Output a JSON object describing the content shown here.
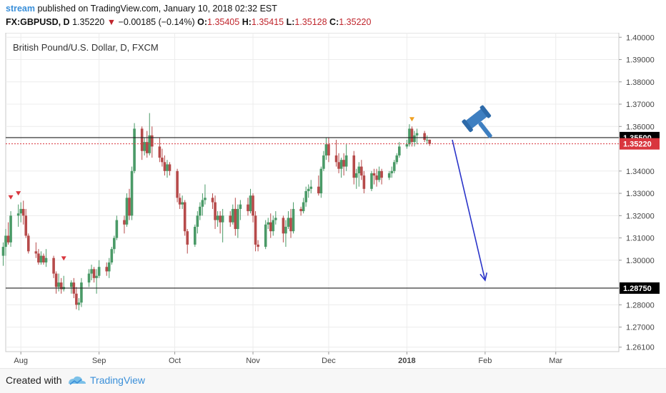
{
  "header": {
    "author": "stream",
    "published_text": "published on TradingView.com, January 10, 2018 02:32 EST",
    "symbol": "FX:GBPUSD, D",
    "last": "1.35220",
    "change_arrow": "▼",
    "change": "−0.00185 (−0.14%)",
    "o_label": "O:",
    "o_value": "1.35405",
    "h_label": "H:",
    "h_value": "1.35415",
    "l_label": "L:",
    "l_value": "1.35128",
    "c_label": "C:",
    "c_value": "1.35220"
  },
  "footer": {
    "created_with": "Created with",
    "brand": "TradingView"
  },
  "colors": {
    "up": "#4a9a67",
    "down": "#b64a4a",
    "drawing_line": "#2a34c9",
    "price_label": "#d9363e",
    "hline_label": "#000000",
    "gavel": "#3e7fc1"
  },
  "icons": {
    "gavel": "gavel-icon",
    "logo": "tradingview-logo-icon"
  },
  "chart_data": {
    "type": "candlestick",
    "title": "British Pound/U.S. Dollar, D, FXCM",
    "y_ticks": [
      "1.40000",
      "1.39000",
      "1.38000",
      "1.37000",
      "1.36000",
      "1.34000",
      "1.33000",
      "1.32000",
      "1.31000",
      "1.30000",
      "1.28000",
      "1.27000",
      "1.26100"
    ],
    "ylim": [
      1.259,
      1.402
    ],
    "x_ticks": [
      "Aug",
      "Sep",
      "Oct",
      "Nov",
      "Dec",
      "2018",
      "Feb",
      "Mar"
    ],
    "x_tick_dates": [
      "2017-08-01",
      "2017-09-01",
      "2017-10-01",
      "2017-11-01",
      "2017-12-01",
      "2018-01-01",
      "2018-02-01",
      "2018-03-01"
    ],
    "xlim": [
      "2017-07-26",
      "2018-03-26"
    ],
    "horizontal_lines": [
      {
        "value": 1.355,
        "label": "1.35500"
      },
      {
        "value": 1.2875,
        "label": "1.28750"
      }
    ],
    "last_price": {
      "value": 1.3522,
      "label": "1.35220"
    },
    "trend_line": {
      "from": {
        "date": "2018-01-19",
        "value": 1.354
      },
      "to": {
        "date": "2018-02-01",
        "value": 1.291
      }
    },
    "signal_markers": [
      {
        "date": "2017-07-28",
        "value": 1.3282
      },
      {
        "date": "2017-07-31",
        "value": 1.33
      },
      {
        "date": "2017-08-18",
        "value": 1.3008
      },
      {
        "date": "2018-01-03",
        "value": 1.3632
      }
    ],
    "candles": [
      {
        "date": "2017-07-25",
        "o": 1.302,
        "h": 1.308,
        "l": 1.2975,
        "c": 1.306
      },
      {
        "date": "2017-07-26",
        "o": 1.306,
        "h": 1.314,
        "l": 1.302,
        "c": 1.311
      },
      {
        "date": "2017-07-27",
        "o": 1.311,
        "h": 1.317,
        "l": 1.307,
        "c": 1.308
      },
      {
        "date": "2017-07-28",
        "o": 1.308,
        "h": 1.322,
        "l": 1.306,
        "c": 1.32
      },
      {
        "date": "2017-07-31",
        "o": 1.32,
        "h": 1.325,
        "l": 1.315,
        "c": 1.321
      },
      {
        "date": "2017-08-01",
        "o": 1.321,
        "h": 1.326,
        "l": 1.317,
        "c": 1.323
      },
      {
        "date": "2017-08-02",
        "o": 1.323,
        "h": 1.3267,
        "l": 1.316,
        "c": 1.32
      },
      {
        "date": "2017-08-03",
        "o": 1.32,
        "h": 1.323,
        "l": 1.31,
        "c": 1.311
      },
      {
        "date": "2017-08-04",
        "o": 1.311,
        "h": 1.312,
        "l": 1.303,
        "c": 1.304
      },
      {
        "date": "2017-08-07",
        "o": 1.304,
        "h": 1.308,
        "l": 1.301,
        "c": 1.303
      },
      {
        "date": "2017-08-08",
        "o": 1.303,
        "h": 1.305,
        "l": 1.298,
        "c": 1.299
      },
      {
        "date": "2017-08-09",
        "o": 1.299,
        "h": 1.304,
        "l": 1.298,
        "c": 1.302
      },
      {
        "date": "2017-08-10",
        "o": 1.302,
        "h": 1.303,
        "l": 1.298,
        "c": 1.299
      },
      {
        "date": "2017-08-11",
        "o": 1.299,
        "h": 1.305,
        "l": 1.297,
        "c": 1.301
      },
      {
        "date": "2017-08-14",
        "o": 1.301,
        "h": 1.302,
        "l": 1.292,
        "c": 1.294
      },
      {
        "date": "2017-08-15",
        "o": 1.294,
        "h": 1.295,
        "l": 1.285,
        "c": 1.288
      },
      {
        "date": "2017-08-16",
        "o": 1.288,
        "h": 1.294,
        "l": 1.286,
        "c": 1.29
      },
      {
        "date": "2017-08-17",
        "o": 1.29,
        "h": 1.292,
        "l": 1.285,
        "c": 1.287
      },
      {
        "date": "2017-08-18",
        "o": 1.287,
        "h": 1.293,
        "l": 1.286,
        "c": 1.288
      },
      {
        "date": "2017-08-21",
        "o": 1.288,
        "h": 1.291,
        "l": 1.285,
        "c": 1.29
      },
      {
        "date": "2017-08-22",
        "o": 1.29,
        "h": 1.292,
        "l": 1.283,
        "c": 1.285
      },
      {
        "date": "2017-08-23",
        "o": 1.285,
        "h": 1.288,
        "l": 1.278,
        "c": 1.28
      },
      {
        "date": "2017-08-24",
        "o": 1.28,
        "h": 1.283,
        "l": 1.2775,
        "c": 1.281
      },
      {
        "date": "2017-08-25",
        "o": 1.281,
        "h": 1.292,
        "l": 1.279,
        "c": 1.29
      },
      {
        "date": "2017-08-28",
        "o": 1.29,
        "h": 1.296,
        "l": 1.288,
        "c": 1.294
      },
      {
        "date": "2017-08-29",
        "o": 1.294,
        "h": 1.298,
        "l": 1.291,
        "c": 1.296
      },
      {
        "date": "2017-08-30",
        "o": 1.296,
        "h": 1.297,
        "l": 1.29,
        "c": 1.292
      },
      {
        "date": "2017-08-31",
        "o": 1.292,
        "h": 1.296,
        "l": 1.285,
        "c": 1.293
      },
      {
        "date": "2017-09-01",
        "o": 1.293,
        "h": 1.3,
        "l": 1.292,
        "c": 1.297
      },
      {
        "date": "2017-09-04",
        "o": 1.297,
        "h": 1.299,
        "l": 1.293,
        "c": 1.295
      },
      {
        "date": "2017-09-05",
        "o": 1.295,
        "h": 1.301,
        "l": 1.292,
        "c": 1.299
      },
      {
        "date": "2017-09-06",
        "o": 1.299,
        "h": 1.306,
        "l": 1.298,
        "c": 1.305
      },
      {
        "date": "2017-09-07",
        "o": 1.305,
        "h": 1.311,
        "l": 1.303,
        "c": 1.31
      },
      {
        "date": "2017-09-08",
        "o": 1.31,
        "h": 1.32,
        "l": 1.309,
        "c": 1.318
      },
      {
        "date": "2017-09-11",
        "o": 1.318,
        "h": 1.32,
        "l": 1.312,
        "c": 1.316
      },
      {
        "date": "2017-09-12",
        "o": 1.316,
        "h": 1.33,
        "l": 1.315,
        "c": 1.328
      },
      {
        "date": "2017-09-13",
        "o": 1.328,
        "h": 1.332,
        "l": 1.318,
        "c": 1.32
      },
      {
        "date": "2017-09-14",
        "o": 1.32,
        "h": 1.342,
        "l": 1.318,
        "c": 1.34
      },
      {
        "date": "2017-09-15",
        "o": 1.34,
        "h": 1.3615,
        "l": 1.339,
        "c": 1.359
      },
      {
        "date": "2017-09-18",
        "o": 1.359,
        "h": 1.36,
        "l": 1.345,
        "c": 1.349
      },
      {
        "date": "2017-09-19",
        "o": 1.349,
        "h": 1.355,
        "l": 1.347,
        "c": 1.353
      },
      {
        "date": "2017-09-20",
        "o": 1.353,
        "h": 1.358,
        "l": 1.346,
        "c": 1.348
      },
      {
        "date": "2017-09-21",
        "o": 1.348,
        "h": 1.366,
        "l": 1.347,
        "c": 1.356
      },
      {
        "date": "2017-09-22",
        "o": 1.356,
        "h": 1.36,
        "l": 1.346,
        "c": 1.351
      },
      {
        "date": "2017-09-25",
        "o": 1.351,
        "h": 1.355,
        "l": 1.344,
        "c": 1.346
      },
      {
        "date": "2017-09-26",
        "o": 1.346,
        "h": 1.35,
        "l": 1.342,
        "c": 1.344
      },
      {
        "date": "2017-09-27",
        "o": 1.344,
        "h": 1.347,
        "l": 1.338,
        "c": 1.34
      },
      {
        "date": "2017-09-28",
        "o": 1.34,
        "h": 1.345,
        "l": 1.337,
        "c": 1.343
      },
      {
        "date": "2017-09-29",
        "o": 1.343,
        "h": 1.344,
        "l": 1.338,
        "c": 1.34
      },
      {
        "date": "2017-10-02",
        "o": 1.34,
        "h": 1.341,
        "l": 1.326,
        "c": 1.328
      },
      {
        "date": "2017-10-03",
        "o": 1.328,
        "h": 1.33,
        "l": 1.323,
        "c": 1.325
      },
      {
        "date": "2017-10-04",
        "o": 1.325,
        "h": 1.329,
        "l": 1.323,
        "c": 1.326
      },
      {
        "date": "2017-10-05",
        "o": 1.326,
        "h": 1.327,
        "l": 1.311,
        "c": 1.313
      },
      {
        "date": "2017-10-06",
        "o": 1.313,
        "h": 1.314,
        "l": 1.303,
        "c": 1.307
      },
      {
        "date": "2017-10-09",
        "o": 1.307,
        "h": 1.316,
        "l": 1.306,
        "c": 1.315
      },
      {
        "date": "2017-10-10",
        "o": 1.315,
        "h": 1.322,
        "l": 1.312,
        "c": 1.32
      },
      {
        "date": "2017-10-11",
        "o": 1.32,
        "h": 1.326,
        "l": 1.318,
        "c": 1.324
      },
      {
        "date": "2017-10-12",
        "o": 1.324,
        "h": 1.33,
        "l": 1.32,
        "c": 1.327
      },
      {
        "date": "2017-10-13",
        "o": 1.327,
        "h": 1.334,
        "l": 1.325,
        "c": 1.328
      },
      {
        "date": "2017-10-16",
        "o": 1.328,
        "h": 1.33,
        "l": 1.323,
        "c": 1.326
      },
      {
        "date": "2017-10-17",
        "o": 1.326,
        "h": 1.329,
        "l": 1.314,
        "c": 1.318
      },
      {
        "date": "2017-10-18",
        "o": 1.318,
        "h": 1.322,
        "l": 1.315,
        "c": 1.32
      },
      {
        "date": "2017-10-19",
        "o": 1.32,
        "h": 1.322,
        "l": 1.312,
        "c": 1.317
      },
      {
        "date": "2017-10-20",
        "o": 1.317,
        "h": 1.323,
        "l": 1.308,
        "c": 1.32
      },
      {
        "date": "2017-10-23",
        "o": 1.32,
        "h": 1.322,
        "l": 1.315,
        "c": 1.317
      },
      {
        "date": "2017-10-24",
        "o": 1.317,
        "h": 1.325,
        "l": 1.316,
        "c": 1.323
      },
      {
        "date": "2017-10-25",
        "o": 1.323,
        "h": 1.328,
        "l": 1.311,
        "c": 1.314
      },
      {
        "date": "2017-10-26",
        "o": 1.314,
        "h": 1.325,
        "l": 1.31,
        "c": 1.323
      },
      {
        "date": "2017-10-27",
        "o": 1.323,
        "h": 1.327,
        "l": 1.318,
        "c": 1.325
      },
      {
        "date": "2017-10-30",
        "o": 1.325,
        "h": 1.328,
        "l": 1.32,
        "c": 1.322
      },
      {
        "date": "2017-10-31",
        "o": 1.322,
        "h": 1.332,
        "l": 1.321,
        "c": 1.329
      },
      {
        "date": "2017-11-01",
        "o": 1.329,
        "h": 1.33,
        "l": 1.317,
        "c": 1.32
      },
      {
        "date": "2017-11-02",
        "o": 1.32,
        "h": 1.322,
        "l": 1.304,
        "c": 1.307
      },
      {
        "date": "2017-11-03",
        "o": 1.307,
        "h": 1.309,
        "l": 1.304,
        "c": 1.306
      },
      {
        "date": "2017-11-06",
        "o": 1.306,
        "h": 1.318,
        "l": 1.305,
        "c": 1.316
      },
      {
        "date": "2017-11-07",
        "o": 1.316,
        "h": 1.319,
        "l": 1.314,
        "c": 1.317
      },
      {
        "date": "2017-11-08",
        "o": 1.317,
        "h": 1.321,
        "l": 1.31,
        "c": 1.313
      },
      {
        "date": "2017-11-09",
        "o": 1.313,
        "h": 1.32,
        "l": 1.311,
        "c": 1.318
      },
      {
        "date": "2017-11-10",
        "o": 1.318,
        "h": 1.322,
        "l": 1.316,
        "c": 1.319
      },
      {
        "date": "2017-11-13",
        "o": 1.319,
        "h": 1.32,
        "l": 1.308,
        "c": 1.312
      },
      {
        "date": "2017-11-14",
        "o": 1.312,
        "h": 1.318,
        "l": 1.306,
        "c": 1.315
      },
      {
        "date": "2017-11-15",
        "o": 1.315,
        "h": 1.322,
        "l": 1.314,
        "c": 1.319
      },
      {
        "date": "2017-11-16",
        "o": 1.319,
        "h": 1.323,
        "l": 1.31,
        "c": 1.313
      },
      {
        "date": "2017-11-17",
        "o": 1.313,
        "h": 1.326,
        "l": 1.312,
        "c": 1.323
      },
      {
        "date": "2017-11-20",
        "o": 1.323,
        "h": 1.324,
        "l": 1.32,
        "c": 1.322
      },
      {
        "date": "2017-11-21",
        "o": 1.322,
        "h": 1.328,
        "l": 1.321,
        "c": 1.326
      },
      {
        "date": "2017-11-22",
        "o": 1.326,
        "h": 1.333,
        "l": 1.324,
        "c": 1.331
      },
      {
        "date": "2017-11-23",
        "o": 1.331,
        "h": 1.334,
        "l": 1.328,
        "c": 1.332
      },
      {
        "date": "2017-11-24",
        "o": 1.332,
        "h": 1.336,
        "l": 1.33,
        "c": 1.333
      },
      {
        "date": "2017-11-27",
        "o": 1.333,
        "h": 1.338,
        "l": 1.329,
        "c": 1.33
      },
      {
        "date": "2017-11-28",
        "o": 1.33,
        "h": 1.342,
        "l": 1.328,
        "c": 1.341
      },
      {
        "date": "2017-11-29",
        "o": 1.341,
        "h": 1.349,
        "l": 1.34,
        "c": 1.347
      },
      {
        "date": "2017-11-30",
        "o": 1.347,
        "h": 1.355,
        "l": 1.345,
        "c": 1.352
      },
      {
        "date": "2017-12-01",
        "o": 1.352,
        "h": 1.355,
        "l": 1.344,
        "c": 1.347
      },
      {
        "date": "2017-12-04",
        "o": 1.347,
        "h": 1.354,
        "l": 1.342,
        "c": 1.344
      },
      {
        "date": "2017-12-05",
        "o": 1.344,
        "h": 1.348,
        "l": 1.339,
        "c": 1.341
      },
      {
        "date": "2017-12-06",
        "o": 1.341,
        "h": 1.346,
        "l": 1.337,
        "c": 1.345
      },
      {
        "date": "2017-12-07",
        "o": 1.345,
        "h": 1.348,
        "l": 1.338,
        "c": 1.342
      },
      {
        "date": "2017-12-08",
        "o": 1.342,
        "h": 1.352,
        "l": 1.34,
        "c": 1.347
      },
      {
        "date": "2017-12-11",
        "o": 1.347,
        "h": 1.349,
        "l": 1.334,
        "c": 1.337
      },
      {
        "date": "2017-12-12",
        "o": 1.337,
        "h": 1.341,
        "l": 1.332,
        "c": 1.339
      },
      {
        "date": "2017-12-13",
        "o": 1.339,
        "h": 1.344,
        "l": 1.333,
        "c": 1.342
      },
      {
        "date": "2017-12-14",
        "o": 1.342,
        "h": 1.345,
        "l": 1.336,
        "c": 1.338
      },
      {
        "date": "2017-12-15",
        "o": 1.338,
        "h": 1.34,
        "l": 1.33,
        "c": 1.332
      },
      {
        "date": "2017-12-18",
        "o": 1.332,
        "h": 1.34,
        "l": 1.331,
        "c": 1.339
      },
      {
        "date": "2017-12-19",
        "o": 1.339,
        "h": 1.341,
        "l": 1.334,
        "c": 1.338
      },
      {
        "date": "2017-12-20",
        "o": 1.338,
        "h": 1.341,
        "l": 1.333,
        "c": 1.336
      },
      {
        "date": "2017-12-21",
        "o": 1.336,
        "h": 1.342,
        "l": 1.335,
        "c": 1.34
      },
      {
        "date": "2017-12-22",
        "o": 1.34,
        "h": 1.341,
        "l": 1.334,
        "c": 1.337
      },
      {
        "date": "2017-12-25",
        "o": 1.337,
        "h": 1.34,
        "l": 1.336,
        "c": 1.339
      },
      {
        "date": "2017-12-26",
        "o": 1.339,
        "h": 1.342,
        "l": 1.337,
        "c": 1.34
      },
      {
        "date": "2017-12-27",
        "o": 1.34,
        "h": 1.345,
        "l": 1.339,
        "c": 1.344
      },
      {
        "date": "2017-12-28",
        "o": 1.344,
        "h": 1.348,
        "l": 1.343,
        "c": 1.347
      },
      {
        "date": "2017-12-29",
        "o": 1.347,
        "h": 1.353,
        "l": 1.346,
        "c": 1.351
      },
      {
        "date": "2018-01-01",
        "o": 1.351,
        "h": 1.354,
        "l": 1.35,
        "c": 1.352
      },
      {
        "date": "2018-01-02",
        "o": 1.352,
        "h": 1.361,
        "l": 1.351,
        "c": 1.359
      },
      {
        "date": "2018-01-03",
        "o": 1.359,
        "h": 1.36,
        "l": 1.351,
        "c": 1.353
      },
      {
        "date": "2018-01-04",
        "o": 1.353,
        "h": 1.358,
        "l": 1.351,
        "c": 1.356
      },
      {
        "date": "2018-01-05",
        "o": 1.356,
        "h": 1.359,
        "l": 1.352,
        "c": 1.357
      },
      {
        "date": "2018-01-08",
        "o": 1.357,
        "h": 1.358,
        "l": 1.353,
        "c": 1.354
      },
      {
        "date": "2018-01-09",
        "o": 1.354,
        "h": 1.356,
        "l": 1.352,
        "c": 1.35405
      },
      {
        "date": "2018-01-10",
        "o": 1.35405,
        "h": 1.35415,
        "l": 1.35128,
        "c": 1.3522
      }
    ]
  }
}
